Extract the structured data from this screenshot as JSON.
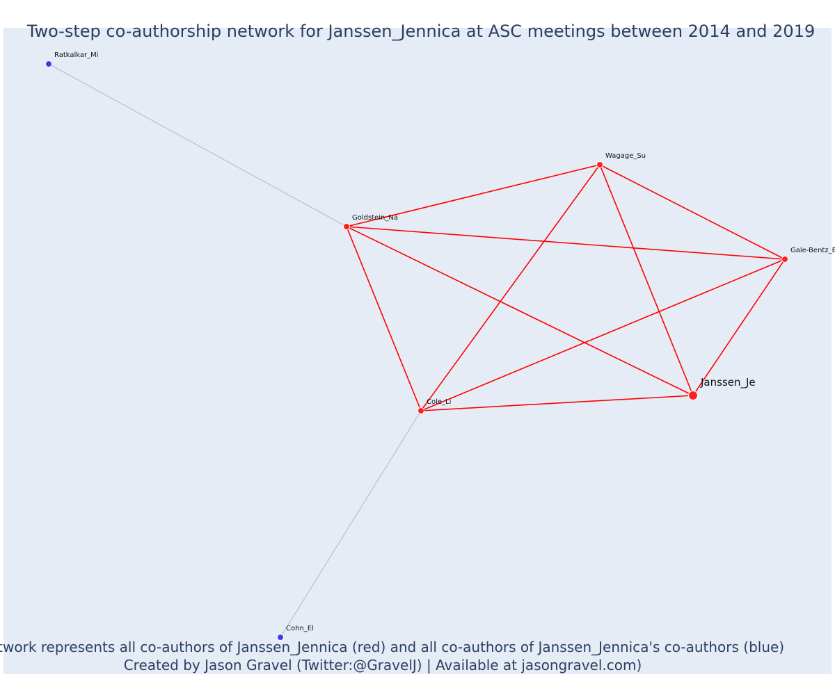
{
  "title": "Two-step co-authorship network for Janssen_Jennica at ASC meetings between 2014 and 2019",
  "caption": {
    "line1": "Network represents all co-authors of Janssen_Jennica (red) and all co-authors of Janssen_Jennica's co-authors (blue)",
    "line2": "Created by Jason Gravel (Twitter:@GravelJ) | Available at jasongravel.com)"
  },
  "colors": {
    "background": "#e5ecf6",
    "first_degree": "#ff1f1f",
    "second_degree": "#3a3aee",
    "first_degree_edge": "#ff0000",
    "second_degree_edge": "#b3b7c6"
  },
  "chart_data": {
    "type": "network",
    "nodes": [
      {
        "id": "Janssen_Je",
        "label": "Janssen_Je",
        "group": "focus"
      },
      {
        "id": "Wagage_Su",
        "label": "Wagage_Su",
        "group": "coauthor"
      },
      {
        "id": "Goldstein_Na",
        "label": "Goldstein_Na",
        "group": "coauthor"
      },
      {
        "id": "Gale-Bentz_E",
        "label": "Gale-Bentz_E",
        "group": "coauthor"
      },
      {
        "id": "Cole_Li",
        "label": "Cole_Li",
        "group": "coauthor"
      },
      {
        "id": "Ratkalkar_Mi",
        "label": "Ratkalkar_Mi",
        "group": "second_degree"
      },
      {
        "id": "Cohn_El",
        "label": "Cohn_El",
        "group": "second_degree"
      }
    ],
    "edges": [
      {
        "source": "Goldstein_Na",
        "target": "Wagage_Su",
        "group": "first_degree"
      },
      {
        "source": "Goldstein_Na",
        "target": "Gale-Bentz_E",
        "group": "first_degree"
      },
      {
        "source": "Goldstein_Na",
        "target": "Janssen_Je",
        "group": "first_degree"
      },
      {
        "source": "Goldstein_Na",
        "target": "Cole_Li",
        "group": "first_degree"
      },
      {
        "source": "Wagage_Su",
        "target": "Gale-Bentz_E",
        "group": "first_degree"
      },
      {
        "source": "Wagage_Su",
        "target": "Janssen_Je",
        "group": "first_degree"
      },
      {
        "source": "Wagage_Su",
        "target": "Cole_Li",
        "group": "first_degree"
      },
      {
        "source": "Gale-Bentz_E",
        "target": "Janssen_Je",
        "group": "first_degree"
      },
      {
        "source": "Gale-Bentz_E",
        "target": "Cole_Li",
        "group": "first_degree"
      },
      {
        "source": "Cole_Li",
        "target": "Janssen_Je",
        "group": "first_degree"
      },
      {
        "source": "Ratkalkar_Mi",
        "target": "Goldstein_Na",
        "group": "second_degree"
      },
      {
        "source": "Cohn_El",
        "target": "Cole_Li",
        "group": "second_degree"
      }
    ]
  }
}
